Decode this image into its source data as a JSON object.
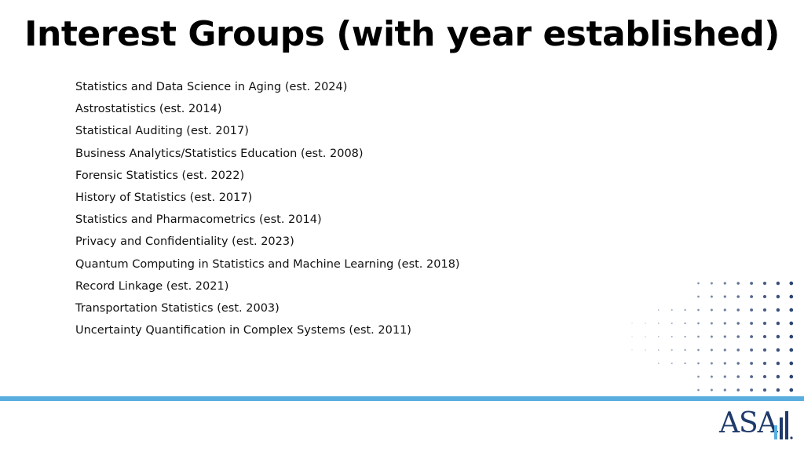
{
  "title": "Interest Groups (with year established)",
  "items": [
    "Statistics and Data Science in Aging (est. 2024)",
    "Astrostatistics (est. 2014)",
    "Statistical Auditing (est. 2017)",
    "Business Analytics/Statistics Education (est. 2008)",
    "Forensic Statistics (est. 2022)",
    "History of Statistics (est. 2017)",
    "Statistics and Pharmacometrics (est. 2014)",
    "Privacy and Confidentiality (est. 2023)",
    "Quantum Computing in Statistics and Machine Learning (est. 2018)",
    "Record Linkage (est. 2021)",
    "Transportation Statistics (est. 2003)",
    "Uncertainty Quantification in Complex Systems (est. 2011)"
  ],
  "logo": {
    "text": "ASA",
    "icon": "asa-bars-logo-icon"
  },
  "colors": {
    "accent_rule": "#5aaddf",
    "dots": "#1f3a6b",
    "logo": "#1f3a6b"
  }
}
